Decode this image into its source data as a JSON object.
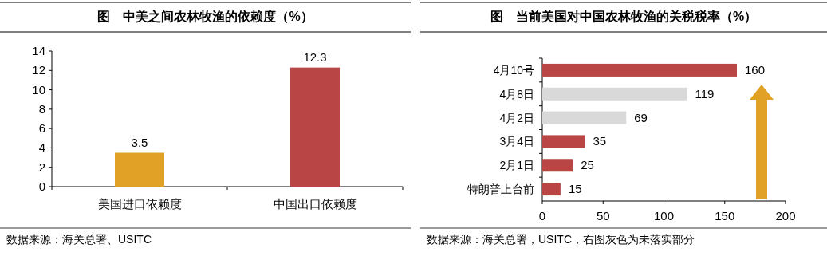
{
  "chart_data": [
    {
      "type": "bar",
      "title": "图　中美之间农林牧渔的依赖度（%）",
      "categories": [
        "美国进口依赖度",
        "中国出口依赖度"
      ],
      "values": [
        3.5,
        12.3
      ],
      "colors": [
        "#e0a126",
        "#b94545"
      ],
      "ylim": [
        0,
        14
      ],
      "yticks": [
        0,
        2,
        4,
        6,
        8,
        10,
        12,
        14
      ],
      "data_labels": true,
      "annotations": [
        "数据来源：海关总署、USITC"
      ]
    },
    {
      "type": "bar",
      "orientation": "horizontal",
      "title": "图　当前美国对中国农林牧渔的关税税率（%）",
      "categories": [
        "4月10号",
        "4月8日",
        "4月2日",
        "3月4日",
        "2月1日",
        "特朗普上台前"
      ],
      "values": [
        160,
        119,
        69,
        35,
        25,
        15
      ],
      "colors": [
        "#b94545",
        "#d9d9d9",
        "#d9d9d9",
        "#b94545",
        "#b94545",
        "#b94545"
      ],
      "xlim": [
        0,
        200
      ],
      "xticks": [
        0,
        50,
        100,
        150,
        200
      ],
      "data_labels": true,
      "annotations": [
        "数据来源：海关总署，USITC，右图灰色为未落实部分"
      ]
    }
  ]
}
